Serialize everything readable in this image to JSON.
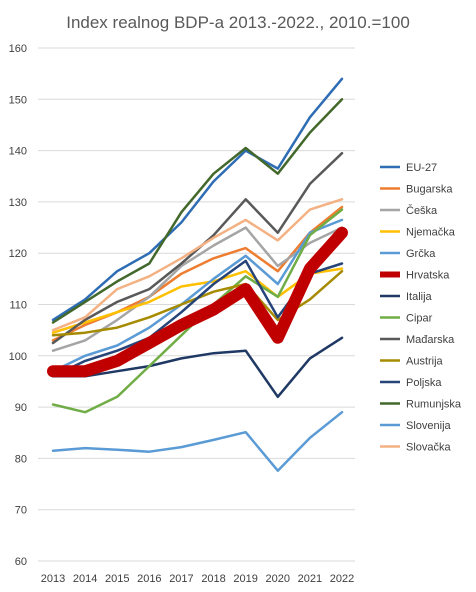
{
  "chart_data": {
    "type": "line",
    "title": "Index realnog BDP-a 2013.-2022., 2010.=100",
    "xlabel": "",
    "ylabel": "",
    "ylim": [
      60,
      160
    ],
    "yticks": [
      60,
      70,
      80,
      90,
      100,
      110,
      120,
      130,
      140,
      150,
      160
    ],
    "grid": true,
    "legend_position": "right",
    "categories": [
      "2013",
      "2014",
      "2015",
      "2016",
      "2017",
      "2018",
      "2019",
      "2020",
      "2021",
      "2022"
    ],
    "highlight_series": "Hrvatska",
    "series": [
      {
        "name": "EU-27",
        "color": "#2E6DB4",
        "values": [
          107,
          111,
          116.5,
          120,
          126,
          134,
          140,
          136.5,
          146.5,
          154
        ]
      },
      {
        "name": "Bugarska",
        "color": "#ED7D31",
        "values": [
          103,
          106,
          108.5,
          111.5,
          116,
          119,
          121,
          116.5,
          124,
          129
        ]
      },
      {
        "name": "Češka",
        "color": "#A5A5A5",
        "values": [
          101,
          103,
          107,
          111.5,
          117.5,
          121.5,
          125,
          117.5,
          122,
          125
        ]
      },
      {
        "name": "Njemačka",
        "color": "#FFC000",
        "values": [
          104.5,
          106.5,
          108.5,
          110.5,
          113.5,
          114.5,
          116.5,
          111.5,
          116,
          117
        ]
      },
      {
        "name": "Grčka",
        "color": "#5B9BD5",
        "values": [
          97,
          100,
          102,
          105.5,
          110,
          115,
          119.5,
          114,
          124,
          126.5
        ]
      },
      {
        "name": "Hrvatska",
        "color": "#C00000",
        "values": [
          97,
          97,
          99,
          102.5,
          106,
          109,
          113,
          103.5,
          117,
          124
        ]
      },
      {
        "name": "Italija",
        "color": "#1F3864",
        "values": [
          96,
          96,
          97,
          98,
          99.5,
          100.5,
          101,
          92,
          99.5,
          103.5
        ]
      },
      {
        "name": "Cipar",
        "color": "#70AD47",
        "values": [
          90.5,
          89,
          92,
          98,
          104,
          110,
          115.5,
          111.5,
          123.5,
          128.5
        ]
      },
      {
        "name": "Mađarska",
        "color": "#595959",
        "values": [
          102.5,
          107,
          110.5,
          113,
          118,
          123.5,
          130.5,
          124,
          133.5,
          139.5
        ]
      },
      {
        "name": "Austrija",
        "color": "#A68B00",
        "values": [
          104,
          104.5,
          105.5,
          107.5,
          110,
          112.5,
          114,
          107,
          111,
          116.5
        ]
      },
      {
        "name": "Poljska",
        "color": "#264478",
        "values": [
          96,
          99,
          101,
          103.5,
          108.5,
          114,
          118.5,
          107.5,
          116,
          118
        ]
      },
      {
        "name": "Rumunjska",
        "color": "#43682B",
        "values": [
          106.5,
          110.5,
          114.5,
          118,
          128,
          135.5,
          140.5,
          135.5,
          143.5,
          150
        ]
      },
      {
        "name": "Slovenija",
        "color": "#5B9BD5",
        "values": [
          81.5,
          82,
          81.7,
          81.3,
          82.2,
          83.6,
          85.1,
          77.6,
          84,
          89
        ]
      },
      {
        "name": "Slovačka",
        "color": "#F4B183",
        "values": [
          105,
          107.5,
          113,
          115.5,
          119,
          123,
          126.5,
          122.5,
          128.5,
          130.5
        ]
      }
    ]
  }
}
